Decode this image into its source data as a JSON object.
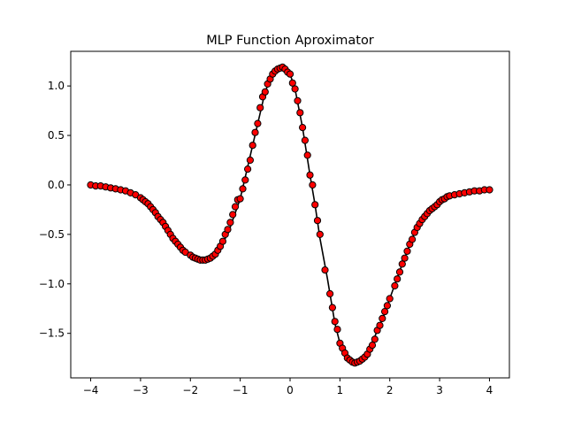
{
  "chart_data": {
    "type": "scatter",
    "title": "MLP Function Aproximator",
    "xlabel": "",
    "ylabel": "",
    "xlim": [
      -4.4,
      4.4
    ],
    "ylim": [
      -1.95,
      1.35
    ],
    "x_ticks": [
      -4,
      -3,
      -2,
      -1,
      0,
      1,
      2,
      3,
      4
    ],
    "x_tick_labels": [
      "−4",
      "−3",
      "−2",
      "−1",
      "0",
      "1",
      "2",
      "3",
      "4"
    ],
    "y_ticks": [
      -1.5,
      -1.0,
      -0.5,
      0.0,
      0.5,
      1.0
    ],
    "y_tick_labels": [
      "−1.5",
      "−1.0",
      "−0.5",
      "0.0",
      "0.5",
      "1.0"
    ],
    "grid": false,
    "series": [
      {
        "kind": "line",
        "color": "#000000",
        "x": [
          -4.0,
          -3.75,
          -3.5,
          -3.25,
          -3.0,
          -2.75,
          -2.5,
          -2.25,
          -2.0,
          -1.9,
          -1.75,
          -1.6,
          -1.5,
          -1.25,
          -1.0,
          -0.75,
          -0.5,
          -0.4,
          -0.25,
          -0.15,
          0.0,
          0.1,
          0.25,
          0.4,
          0.5,
          0.6,
          0.75,
          0.9,
          1.0,
          1.1,
          1.25,
          1.4,
          1.5,
          1.6,
          1.75,
          1.9,
          2.0,
          2.25,
          2.5,
          2.75,
          3.0,
          3.25,
          3.5,
          3.75,
          4.0
        ],
        "y": [
          0.0,
          -0.02,
          -0.04,
          -0.07,
          -0.13,
          -0.25,
          -0.42,
          -0.6,
          -0.71,
          -0.74,
          -0.76,
          -0.74,
          -0.7,
          -0.5,
          -0.14,
          0.4,
          0.94,
          1.07,
          1.17,
          1.19,
          1.12,
          0.97,
          0.58,
          0.1,
          -0.2,
          -0.54,
          -0.95,
          -1.4,
          -1.6,
          -1.72,
          -1.79,
          -1.78,
          -1.74,
          -1.66,
          -1.47,
          -1.3,
          -1.15,
          -0.8,
          -0.48,
          -0.3,
          -0.17,
          -0.11,
          -0.08,
          -0.06,
          -0.05
        ]
      },
      {
        "kind": "scatter",
        "color": "#ff0000",
        "edgecolor": "#000000",
        "x": [
          -4.0,
          -3.9,
          -3.8,
          -3.7,
          -3.6,
          -3.5,
          -3.4,
          -3.3,
          -3.2,
          -3.1,
          -3.0,
          -2.95,
          -2.9,
          -2.85,
          -2.8,
          -2.75,
          -2.7,
          -2.65,
          -2.6,
          -2.55,
          -2.5,
          -2.45,
          -2.4,
          -2.35,
          -2.3,
          -2.25,
          -2.2,
          -2.15,
          -2.1,
          -2.0,
          -1.95,
          -1.9,
          -1.85,
          -1.8,
          -1.75,
          -1.7,
          -1.65,
          -1.6,
          -1.55,
          -1.5,
          -1.45,
          -1.4,
          -1.35,
          -1.3,
          -1.25,
          -1.2,
          -1.15,
          -1.1,
          -1.05,
          -1.0,
          -0.95,
          -0.9,
          -0.85,
          -0.8,
          -0.75,
          -0.7,
          -0.65,
          -0.6,
          -0.55,
          -0.5,
          -0.45,
          -0.4,
          -0.35,
          -0.3,
          -0.25,
          -0.2,
          -0.15,
          -0.1,
          -0.05,
          0.0,
          0.05,
          0.1,
          0.15,
          0.2,
          0.25,
          0.3,
          0.35,
          0.4,
          0.45,
          0.5,
          0.55,
          0.6,
          0.7,
          0.8,
          0.85,
          0.9,
          0.95,
          1.0,
          1.05,
          1.1,
          1.15,
          1.2,
          1.25,
          1.3,
          1.35,
          1.4,
          1.45,
          1.5,
          1.55,
          1.6,
          1.65,
          1.7,
          1.75,
          1.8,
          1.85,
          1.9,
          1.95,
          2.0,
          2.1,
          2.15,
          2.2,
          2.25,
          2.3,
          2.35,
          2.4,
          2.45,
          2.5,
          2.55,
          2.6,
          2.65,
          2.7,
          2.75,
          2.8,
          2.85,
          2.9,
          2.95,
          3.0,
          3.05,
          3.1,
          3.15,
          3.2,
          3.3,
          3.4,
          3.5,
          3.6,
          3.7,
          3.8,
          3.9,
          4.0
        ],
        "y": [
          0.0,
          -0.01,
          -0.01,
          -0.02,
          -0.03,
          -0.04,
          -0.05,
          -0.06,
          -0.08,
          -0.1,
          -0.13,
          -0.15,
          -0.17,
          -0.19,
          -0.22,
          -0.25,
          -0.28,
          -0.32,
          -0.35,
          -0.38,
          -0.42,
          -0.46,
          -0.5,
          -0.54,
          -0.57,
          -0.6,
          -0.63,
          -0.66,
          -0.68,
          -0.71,
          -0.73,
          -0.74,
          -0.75,
          -0.76,
          -0.76,
          -0.76,
          -0.75,
          -0.74,
          -0.72,
          -0.7,
          -0.66,
          -0.62,
          -0.57,
          -0.5,
          -0.45,
          -0.38,
          -0.3,
          -0.22,
          -0.15,
          -0.14,
          -0.04,
          0.05,
          0.16,
          0.25,
          0.4,
          0.53,
          0.62,
          0.78,
          0.89,
          0.94,
          1.02,
          1.07,
          1.12,
          1.15,
          1.17,
          1.18,
          1.19,
          1.17,
          1.14,
          1.12,
          1.03,
          0.97,
          0.85,
          0.73,
          0.58,
          0.45,
          0.3,
          0.1,
          0.0,
          -0.2,
          -0.36,
          -0.5,
          -0.86,
          -1.1,
          -1.24,
          -1.38,
          -1.46,
          -1.6,
          -1.65,
          -1.7,
          -1.75,
          -1.77,
          -1.79,
          -1.8,
          -1.79,
          -1.78,
          -1.76,
          -1.74,
          -1.71,
          -1.66,
          -1.62,
          -1.56,
          -1.47,
          -1.42,
          -1.35,
          -1.28,
          -1.22,
          -1.15,
          -1.02,
          -0.95,
          -0.88,
          -0.8,
          -0.74,
          -0.67,
          -0.6,
          -0.55,
          -0.48,
          -0.43,
          -0.39,
          -0.35,
          -0.32,
          -0.29,
          -0.26,
          -0.24,
          -0.22,
          -0.2,
          -0.17,
          -0.15,
          -0.14,
          -0.12,
          -0.11,
          -0.1,
          -0.09,
          -0.08,
          -0.07,
          -0.06,
          -0.06,
          -0.05,
          -0.05
        ]
      }
    ]
  }
}
